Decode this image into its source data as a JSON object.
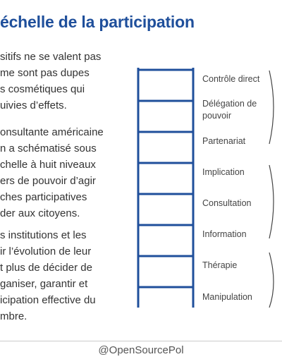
{
  "slide": {
    "title": "échelle de la participation",
    "paragraphs": [
      [
        "sitifs ne se valent pas",
        "me sont pas dupes",
        "s cosmétiques qui",
        "uivies d’effets."
      ],
      [
        "onsultante américaine",
        "n a schématisé sous",
        "chelle à huit niveaux",
        "ers de pouvoir d’agir",
        "ches participatives",
        "der aux citoyens."
      ],
      [
        "s institutions et les",
        "ir l’évolution de leur",
        "t plus de décider de",
        "ganiser, garantir et",
        "icipation effective du",
        "mbre."
      ]
    ],
    "ladder_levels": [
      "Contrôle direct",
      "Délégation de pouvoir",
      "Partenariat",
      "Implication",
      "Consultation",
      "Information",
      "Thérapie",
      "Manipulation"
    ],
    "footer": "@OpenSourcePol",
    "colors": {
      "title": "#1f4f9b",
      "ladder": "#1f4f9b",
      "text": "#333333"
    }
  }
}
